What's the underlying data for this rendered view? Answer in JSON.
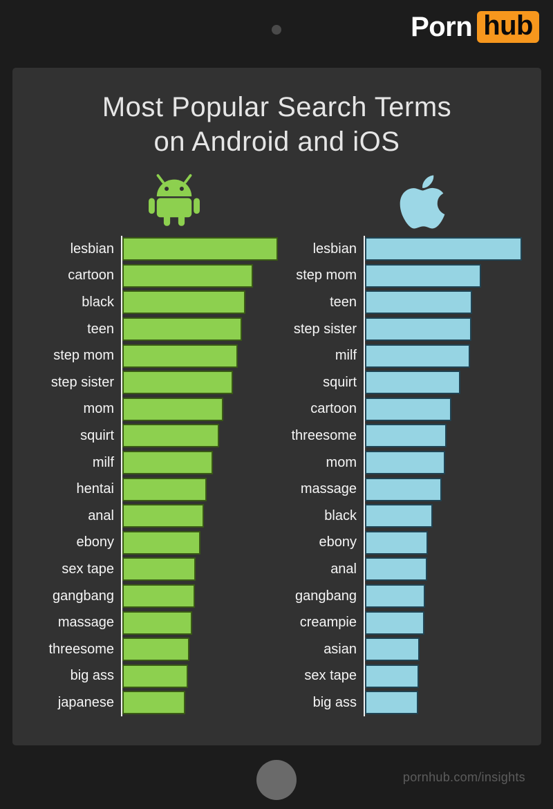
{
  "brand": {
    "word": "Porn",
    "box": "hub",
    "accent": "#f7971d"
  },
  "title": {
    "line1": "Most Popular Search Terms",
    "line2": "on Android and iOS"
  },
  "footer": {
    "url": "pornhub.com/insights"
  },
  "colors": {
    "background": "#1c1c1c",
    "panel": "#323232",
    "axis_line": "#f2f2f2",
    "label_text": "#f5f5f5",
    "title_text": "#e6e6e6",
    "android_green": "#8dd04f",
    "android_green_border": "#3a5a15",
    "ios_blue": "#96d4e3",
    "ios_blue_border": "#204454",
    "logo_orange": "#f7971d"
  },
  "chart_data": [
    {
      "type": "bar",
      "platform": "Android",
      "icon": "android-icon",
      "orientation": "horizontal",
      "grid": false,
      "legend": "none",
      "value_unit": "relative search volume, % of top term (no numeric axis shown)",
      "bar_color": "#8dd04f",
      "bar_border": "#3a5a15",
      "categories": [
        "lesbian",
        "cartoon",
        "black",
        "teen",
        "step mom",
        "step sister",
        "mom",
        "squirt",
        "milf",
        "hentai",
        "anal",
        "ebony",
        "sex tape",
        "gangbang",
        "massage",
        "threesome",
        "big ass",
        "japanese"
      ],
      "values": [
        100,
        84,
        79,
        77,
        74,
        71,
        65,
        62,
        58,
        54,
        52.5,
        50,
        47,
        46.5,
        45,
        43,
        42,
        40.5
      ]
    },
    {
      "type": "bar",
      "platform": "iOS",
      "icon": "apple-icon",
      "orientation": "horizontal",
      "grid": false,
      "legend": "none",
      "value_unit": "relative search volume, % of top term (no numeric axis shown)",
      "bar_color": "#96d4e3",
      "bar_border": "#204454",
      "categories": [
        "lesbian",
        "step mom",
        "teen",
        "step sister",
        "milf",
        "squirt",
        "cartoon",
        "threesome",
        "mom",
        "massage",
        "black",
        "ebony",
        "anal",
        "gangbang",
        "creampie",
        "asian",
        "sex tape",
        "big ass"
      ],
      "values": [
        100,
        74,
        68.5,
        68,
        67,
        61,
        55,
        52,
        51,
        49,
        43,
        40,
        39.5,
        38.5,
        38,
        35,
        34.5,
        34
      ]
    }
  ]
}
